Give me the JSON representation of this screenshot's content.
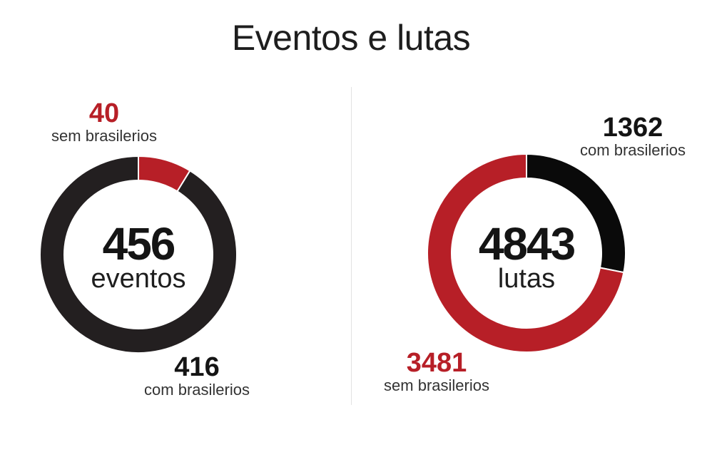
{
  "title": "Eventos e lutas",
  "colors": {
    "red": "#b71f27",
    "black_left": "#231f20",
    "black_right": "#0a0a0a"
  },
  "chart_data": [
    {
      "type": "pie",
      "variant": "donut",
      "total": 456,
      "total_label": "eventos",
      "slices": [
        {
          "label": "sem brasilerios",
          "value": 40,
          "color": "#b71f27"
        },
        {
          "label": "com brasilerios",
          "value": 416,
          "color": "#231f20"
        }
      ]
    },
    {
      "type": "pie",
      "variant": "donut",
      "total": 4843,
      "total_label": "lutas",
      "slices": [
        {
          "label": "com brasilerios",
          "value": 1362,
          "color": "#0a0a0a"
        },
        {
          "label": "sem brasilerios",
          "value": 3481,
          "color": "#b71f27"
        }
      ]
    }
  ]
}
